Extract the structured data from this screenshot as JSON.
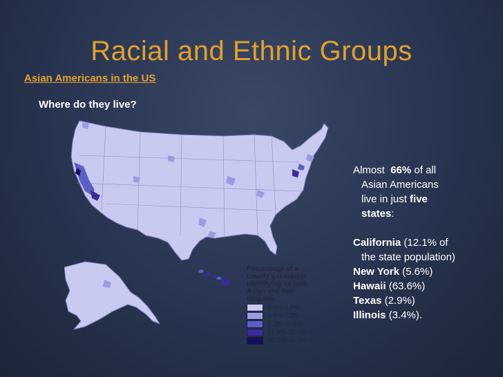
{
  "slide": {
    "title": "Racial and Ethnic Groups",
    "subtitle": "Asian Americans in the US",
    "question": "Where do they live?"
  },
  "legend": {
    "title": "Percentage of a county's residents identifying as both Asian and non-Hispanic",
    "items": [
      {
        "label": "0.0%-1.8%",
        "color": "#c9caf0"
      },
      {
        "label": "1.8%-7.2%",
        "color": "#9a9ce3"
      },
      {
        "label": "7.2%-17.6%",
        "color": "#5c5fc8"
      },
      {
        "label": "17.6%-30.7%",
        "color": "#3a2a9e"
      },
      {
        "label": "30.7%-45.9%",
        "color": "#14105e"
      }
    ]
  },
  "facts": {
    "intro_prefix": "Almost",
    "intro_percent": "66%",
    "intro_middle1": "of all",
    "intro_middle2": "Asian Americans",
    "intro_middle3": "live in just",
    "intro_five": "five",
    "intro_states": "states",
    "intro_colon": ":",
    "states": [
      {
        "name": "California",
        "detail": "(12.1% of",
        "detail2": "the state population)"
      },
      {
        "name": "New York",
        "detail": "(5.6%)"
      },
      {
        "name": "Hawaii",
        "detail": "(63.6%)"
      },
      {
        "name": "Texas",
        "detail": "(2.9%)"
      },
      {
        "name": "Illinois",
        "detail": "(3.4%)."
      }
    ]
  }
}
